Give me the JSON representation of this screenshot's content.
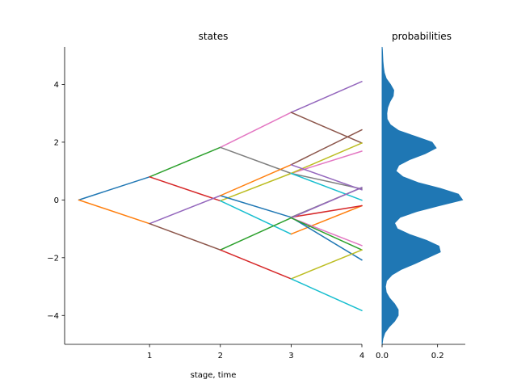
{
  "chart_data": [
    {
      "type": "line",
      "title": "states",
      "xlabel": "stage, time",
      "ylabel": "",
      "xlim": [
        -0.2,
        4.0
      ],
      "ylim": [
        -5.0,
        5.3
      ],
      "xticks": [
        1,
        2,
        3,
        4
      ],
      "xtick_labels": [
        "1",
        "2",
        "3",
        "4"
      ],
      "yticks": [
        -4,
        -2,
        0,
        2,
        4
      ],
      "ytick_labels": [
        "−4",
        "−2",
        "0",
        "2",
        "4"
      ],
      "grid": false,
      "legend": "none",
      "segments": [
        {
          "color": "#1f77b4",
          "x": [
            0,
            1
          ],
          "y": [
            0.0,
            0.8
          ]
        },
        {
          "color": "#ff7f0e",
          "x": [
            0,
            1
          ],
          "y": [
            0.0,
            -0.82
          ]
        },
        {
          "color": "#2ca02c",
          "x": [
            1,
            2
          ],
          "y": [
            0.8,
            1.82
          ]
        },
        {
          "color": "#d62728",
          "x": [
            1,
            2
          ],
          "y": [
            0.8,
            -0.03
          ]
        },
        {
          "color": "#9467bd",
          "x": [
            1,
            2
          ],
          "y": [
            -0.82,
            0.15
          ]
        },
        {
          "color": "#8c564b",
          "x": [
            1,
            2
          ],
          "y": [
            -0.82,
            -1.73
          ]
        },
        {
          "color": "#e377c2",
          "x": [
            2,
            3
          ],
          "y": [
            1.82,
            3.03
          ]
        },
        {
          "color": "#7f7f7f",
          "x": [
            2,
            3
          ],
          "y": [
            1.82,
            0.92
          ]
        },
        {
          "color": "#bcbd22",
          "x": [
            2,
            3
          ],
          "y": [
            -0.03,
            0.92
          ]
        },
        {
          "color": "#17becf",
          "x": [
            2,
            3
          ],
          "y": [
            -0.03,
            -1.18
          ]
        },
        {
          "color": "#1f77b4",
          "x": [
            2,
            3
          ],
          "y": [
            0.15,
            -0.6
          ]
        },
        {
          "color": "#ff7f0e",
          "x": [
            2,
            3
          ],
          "y": [
            0.15,
            1.22
          ]
        },
        {
          "color": "#2ca02c",
          "x": [
            2,
            3
          ],
          "y": [
            -1.73,
            -0.62
          ]
        },
        {
          "color": "#d62728",
          "x": [
            2,
            3
          ],
          "y": [
            -1.73,
            -2.73
          ]
        },
        {
          "color": "#9467bd",
          "x": [
            3,
            4
          ],
          "y": [
            3.03,
            4.1
          ]
        },
        {
          "color": "#8c564b",
          "x": [
            3,
            4
          ],
          "y": [
            3.03,
            1.97
          ]
        },
        {
          "color": "#e377c2",
          "x": [
            3,
            4
          ],
          "y": [
            0.92,
            1.69
          ]
        },
        {
          "color": "#7f7f7f",
          "x": [
            3,
            4
          ],
          "y": [
            0.92,
            0.38
          ]
        },
        {
          "color": "#bcbd22",
          "x": [
            3,
            4
          ],
          "y": [
            0.92,
            1.97
          ]
        },
        {
          "color": "#17becf",
          "x": [
            3,
            4
          ],
          "y": [
            0.92,
            -0.01
          ]
        },
        {
          "color": "#8c564b",
          "x": [
            3,
            4
          ],
          "y": [
            1.22,
            2.43
          ]
        },
        {
          "color": "#9467bd",
          "x": [
            3,
            4
          ],
          "y": [
            1.22,
            0.35
          ]
        },
        {
          "color": "#ff7f0e",
          "x": [
            3,
            4
          ],
          "y": [
            -1.18,
            -0.2
          ]
        },
        {
          "color": "#1f77b4",
          "x": [
            3,
            4
          ],
          "y": [
            -0.6,
            -2.08
          ]
        },
        {
          "color": "#d62728",
          "x": [
            3,
            4
          ],
          "y": [
            -0.6,
            -0.2
          ]
        },
        {
          "color": "#7f7f7f",
          "x": [
            3,
            4
          ],
          "y": [
            -0.6,
            0.43
          ]
        },
        {
          "color": "#9467bd",
          "x": [
            3,
            4
          ],
          "y": [
            -0.62,
            0.43
          ]
        },
        {
          "color": "#e377c2",
          "x": [
            3,
            4
          ],
          "y": [
            -0.62,
            -1.58
          ]
        },
        {
          "color": "#2ca02c",
          "x": [
            3,
            4
          ],
          "y": [
            -0.62,
            -1.73
          ]
        },
        {
          "color": "#bcbd22",
          "x": [
            3,
            4
          ],
          "y": [
            -2.73,
            -1.73
          ]
        },
        {
          "color": "#17becf",
          "x": [
            3,
            4
          ],
          "y": [
            -2.73,
            -3.83
          ]
        }
      ]
    },
    {
      "type": "area",
      "title": "probabilities",
      "xlabel": "",
      "ylabel": "",
      "orientation": "horizontal",
      "color": "#1f77b4",
      "xlim": [
        0.0,
        0.3
      ],
      "ylim": [
        -5.0,
        5.3
      ],
      "xticks": [
        0.0,
        0.2
      ],
      "xtick_labels": [
        "0.0",
        "0.2"
      ],
      "grid": false,
      "legend": "none",
      "y": [
        -5.0,
        -4.8,
        -4.6,
        -4.4,
        -4.2,
        -4.0,
        -3.8,
        -3.6,
        -3.4,
        -3.2,
        -3.0,
        -2.8,
        -2.6,
        -2.4,
        -2.2,
        -2.0,
        -1.8,
        -1.6,
        -1.4,
        -1.2,
        -1.0,
        -0.8,
        -0.6,
        -0.4,
        -0.2,
        0.0,
        0.2,
        0.4,
        0.6,
        0.8,
        1.0,
        1.2,
        1.4,
        1.6,
        1.8,
        2.0,
        2.2,
        2.4,
        2.6,
        2.8,
        3.0,
        3.2,
        3.4,
        3.6,
        3.8,
        4.0,
        4.2,
        4.4,
        4.6,
        4.8,
        5.0,
        5.2,
        5.3
      ],
      "density": [
        0.0,
        0.003,
        0.01,
        0.025,
        0.045,
        0.058,
        0.058,
        0.045,
        0.027,
        0.015,
        0.012,
        0.016,
        0.035,
        0.07,
        0.12,
        0.165,
        0.21,
        0.205,
        0.16,
        0.1,
        0.055,
        0.045,
        0.065,
        0.125,
        0.205,
        0.29,
        0.275,
        0.21,
        0.13,
        0.075,
        0.05,
        0.06,
        0.1,
        0.155,
        0.195,
        0.18,
        0.12,
        0.06,
        0.03,
        0.018,
        0.017,
        0.02,
        0.028,
        0.04,
        0.042,
        0.03,
        0.015,
        0.008,
        0.005,
        0.003,
        0.002,
        0.001,
        0.0
      ]
    }
  ]
}
